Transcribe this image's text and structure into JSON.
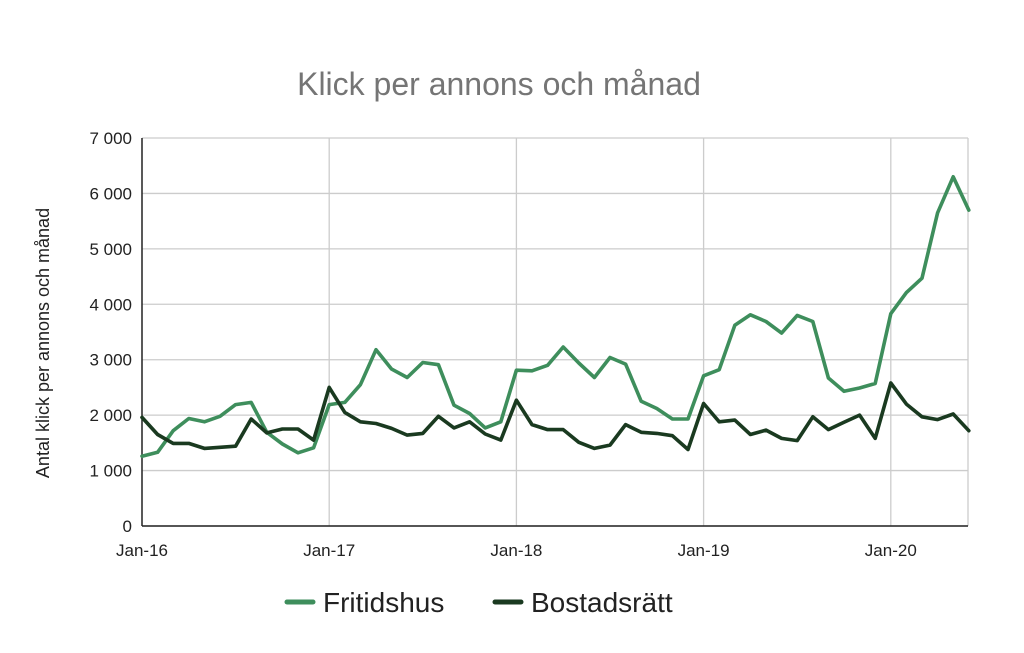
{
  "chart_data": {
    "type": "line",
    "title": "Klick per annons och månad",
    "ylabel": "Antal klick per annons och månad",
    "xlabel": "",
    "ylim": [
      0,
      7000
    ],
    "y_ticks": [
      0,
      1000,
      2000,
      3000,
      4000,
      5000,
      6000,
      7000
    ],
    "y_tick_labels": [
      "0",
      "1 000",
      "2 000",
      "3 000",
      "4 000",
      "5 000",
      "6 000",
      "7 000"
    ],
    "x_tick_labels": [
      "Jan-16",
      "Jan-17",
      "Jan-18",
      "Jan-19",
      "Jan-20"
    ],
    "x_tick_months": [
      "2016-01",
      "2017-01",
      "2018-01",
      "2019-01",
      "2020-01"
    ],
    "x": [
      "2016-01",
      "2016-02",
      "2016-03",
      "2016-04",
      "2016-05",
      "2016-06",
      "2016-07",
      "2016-08",
      "2016-09",
      "2016-10",
      "2016-11",
      "2016-12",
      "2017-01",
      "2017-02",
      "2017-03",
      "2017-04",
      "2017-05",
      "2017-06",
      "2017-07",
      "2017-08",
      "2017-09",
      "2017-10",
      "2017-11",
      "2017-12",
      "2018-01",
      "2018-02",
      "2018-03",
      "2018-04",
      "2018-05",
      "2018-06",
      "2018-07",
      "2018-08",
      "2018-09",
      "2018-10",
      "2018-11",
      "2018-12",
      "2019-01",
      "2019-02",
      "2019-03",
      "2019-04",
      "2019-05",
      "2019-06",
      "2019-07",
      "2019-08",
      "2019-09",
      "2019-10",
      "2019-11",
      "2019-12",
      "2020-01",
      "2020-02",
      "2020-03",
      "2020-04",
      "2020-05",
      "2020-06"
    ],
    "grid": true,
    "legend_position": "bottom",
    "series": [
      {
        "name": "Fritidshus",
        "color": "#3e8e5c",
        "values": [
          1260,
          1330,
          1720,
          1940,
          1880,
          1980,
          2190,
          2230,
          1690,
          1480,
          1320,
          1410,
          2190,
          2230,
          2550,
          3180,
          2830,
          2680,
          2950,
          2910,
          2180,
          2030,
          1770,
          1880,
          2810,
          2800,
          2900,
          3230,
          2940,
          2680,
          3040,
          2920,
          2250,
          2120,
          1930,
          1930,
          2710,
          2820,
          3620,
          3810,
          3690,
          3480,
          3800,
          3690,
          2670,
          2430,
          2490,
          2570,
          3830,
          4210,
          4470,
          5650,
          6300,
          5700
        ]
      },
      {
        "name": "Bostadsrätt",
        "color": "#1a3a20",
        "values": [
          1960,
          1650,
          1490,
          1490,
          1400,
          1420,
          1440,
          1930,
          1680,
          1750,
          1750,
          1550,
          2500,
          2050,
          1880,
          1850,
          1760,
          1640,
          1670,
          1980,
          1770,
          1880,
          1660,
          1550,
          2270,
          1830,
          1740,
          1740,
          1510,
          1400,
          1460,
          1830,
          1690,
          1670,
          1630,
          1380,
          2210,
          1880,
          1910,
          1650,
          1730,
          1580,
          1540,
          1970,
          1740,
          1870,
          2000,
          1580,
          2580,
          2200,
          1970,
          1920,
          2020,
          1720
        ]
      }
    ]
  }
}
